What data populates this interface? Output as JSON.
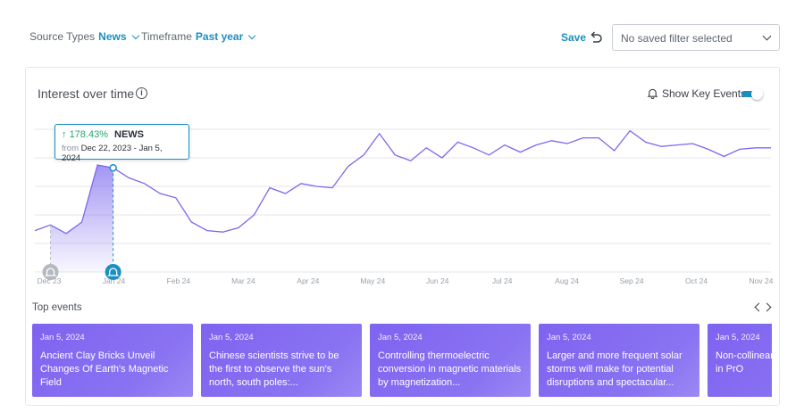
{
  "filters": {
    "source_types_label": "Source Types",
    "source_types_value": "News",
    "timeframe_label": "Timeframe",
    "timeframe_value": "Past year",
    "save_label": "Save",
    "saved_filter_value": "No saved filter selected"
  },
  "panel": {
    "title": "Interest over time",
    "key_events_label": "Show Key Events",
    "key_events_on": true
  },
  "tooltip": {
    "change": "178.43%",
    "source": "NEWS",
    "from_label": "from",
    "range": "Dec 22, 2023 - Jan 5, 2024"
  },
  "chart_data": {
    "type": "line",
    "x_ticks": [
      "Dec 23",
      "Jan 24",
      "Feb 24",
      "Mar 24",
      "Apr 24",
      "May 24",
      "Jun 24",
      "Jul 24",
      "Aug 24",
      "Sep 24",
      "Oct 24",
      "Nov 24"
    ],
    "grid": true,
    "ylim": [
      0,
      100
    ],
    "series": [
      {
        "color": "#7b68ee",
        "values": [
          29,
          33,
          27,
          35,
          75,
          73,
          66,
          62,
          55,
          52,
          35,
          29,
          28,
          31,
          40,
          59,
          55,
          62,
          60,
          59,
          74,
          82,
          97,
          82,
          78,
          87,
          80,
          91,
          87,
          82,
          89,
          84,
          89,
          92,
          90,
          94,
          94,
          85,
          99,
          91,
          88,
          89,
          90,
          86,
          81,
          86,
          87,
          87
        ]
      }
    ],
    "key_events": [
      {
        "x_index": 1,
        "active": false
      },
      {
        "x_index": 5,
        "active": true
      }
    ]
  },
  "top_events": {
    "title": "Top events",
    "cards": [
      {
        "date": "Jan 5, 2024",
        "headline": "Ancient Clay Bricks Unveil Changes Of Earth's Magnetic Field"
      },
      {
        "date": "Jan 5, 2024",
        "headline": "Chinese scientists strive to be the first to observe the sun's north, south poles:..."
      },
      {
        "date": "Jan 5, 2024",
        "headline": "Controlling thermoelectric conversion in magnetic materials by magnetization..."
      },
      {
        "date": "Jan 5, 2024",
        "headline": "Larger and more frequent solar storms will make for potential disruptions and spectacular..."
      },
      {
        "date": "Jan 5, 2024",
        "headline": "Non-collinear driven by a h order in PrO"
      }
    ]
  },
  "colors": {
    "accent": "#1b8fc2",
    "line": "#7b68ee",
    "card": "#7e63f0",
    "positive": "#21a86b"
  }
}
